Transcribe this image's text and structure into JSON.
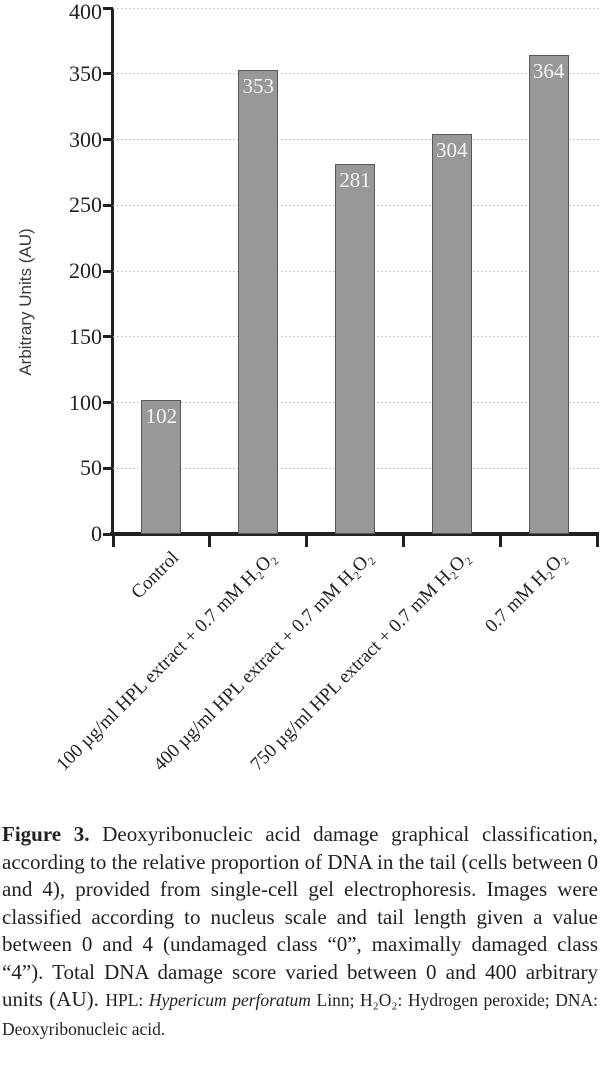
{
  "chart_data": {
    "type": "bar",
    "title": "",
    "xlabel": "",
    "ylabel": "Arbitrary Units (AU)",
    "ylim": [
      0,
      400
    ],
    "yticks": [
      0,
      50,
      100,
      150,
      200,
      250,
      300,
      350,
      400
    ],
    "grid": "horizontal-dotted",
    "legend_position": "none",
    "categories": [
      "Control",
      "100 µg/ml HPL extract + 0.7 mM H₂O₂",
      "400 µg/ml HPL extract + 0.7 mM H₂O₂",
      "750 µg/ml HPL extract + 0.7 mM H₂O₂",
      "0.7 mM H₂O₂"
    ],
    "values": [
      102,
      353,
      281,
      304,
      364
    ],
    "bar_labels": [
      "102",
      "353",
      "281",
      "304",
      "364"
    ],
    "colors": {
      "bar_fill": "#98989b",
      "bar_border": "#58595b",
      "axis": "#231f20",
      "grid": "#b9b9b9",
      "bar_label_text": "#f4f4f4",
      "tick_text": "#231f20"
    }
  },
  "caption": {
    "segments": [
      {
        "style": "bold",
        "text": "Figure 3."
      },
      {
        "style": "normal",
        "text": " Deoxyribonucleic acid damage graphical classification, according to the relative proportion of DNA in the tail (cells between 0 and 4), provided from single-cell gel electrophoresis. Images were classified according to nucleus scale and tail length given a value between 0 and 4 (undamaged class “0”, maximally damaged class “4”). Total DNA damage score varied between 0 and 400 arbitrary units (AU). "
      },
      {
        "style": "small",
        "text": "HPL: "
      },
      {
        "style": "small-italic",
        "text": "Hypericum perforatum"
      },
      {
        "style": "small",
        "text": " Linn; H₂O₂: Hydrogen peroxide; DNA: Deoxyribonucleic acid."
      }
    ]
  }
}
